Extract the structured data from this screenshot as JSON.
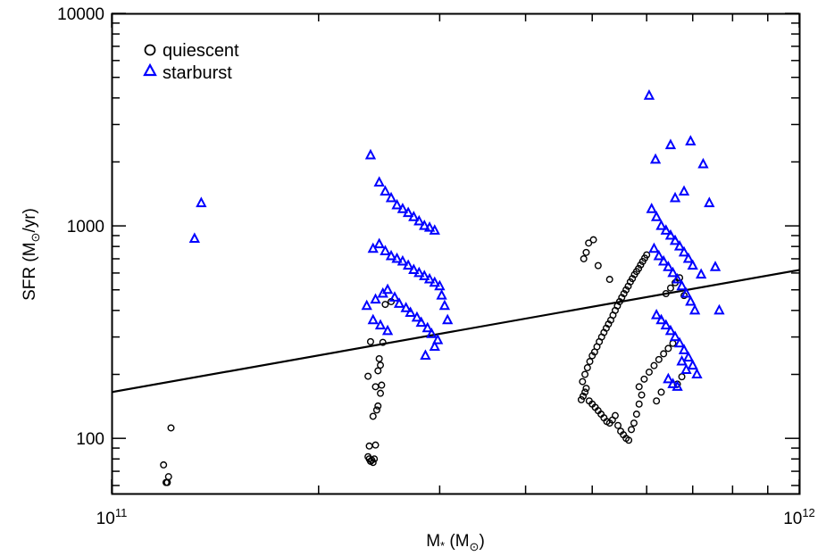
{
  "chart_data": {
    "type": "scatter",
    "xscale": "log",
    "yscale": "log",
    "xlim": [
      100000000000.0,
      1000000000000.0
    ],
    "ylim": [
      55,
      10000
    ],
    "x_tick_labels": [
      {
        "value": 100000000000.0,
        "base": "10",
        "exp": "11"
      },
      {
        "value": 1000000000000.0,
        "base": "10",
        "exp": "12"
      }
    ],
    "y_tick_labels": [
      {
        "value": 100,
        "text": "100"
      },
      {
        "value": 1000,
        "text": "1000"
      },
      {
        "value": 10000,
        "text": "10000"
      }
    ],
    "xlabel": {
      "main": "M",
      "star": "*",
      "paren_open": " (M",
      "sun": "⊙",
      "paren_close": ")"
    },
    "ylabel": {
      "main": "SFR (M",
      "sun": "⊙",
      "rest": "/yr)"
    },
    "grid": false,
    "legend_position": "top-left",
    "trend_line": {
      "x": [
        100000000000.0,
        1000000000000.0
      ],
      "y": [
        165,
        620
      ]
    },
    "series": [
      {
        "name": "quiescent",
        "marker": "circle",
        "color": "#000000",
        "points": [
          [
            119000000000.0,
            75
          ],
          [
            120000000000.0,
            62
          ],
          [
            120500000000.0,
            62
          ],
          [
            121000000000.0,
            66
          ],
          [
            122000000000.0,
            112
          ],
          [
            236000000000.0,
            82
          ],
          [
            237000000000.0,
            80
          ],
          [
            238000000000.0,
            78
          ],
          [
            239000000000.0,
            79
          ],
          [
            240000000000.0,
            77
          ],
          [
            241000000000.0,
            80
          ],
          [
            242000000000.0,
            93
          ],
          [
            237000000000.0,
            92
          ],
          [
            236000000000.0,
            196
          ],
          [
            240000000000.0,
            127
          ],
          [
            243000000000.0,
            136
          ],
          [
            244000000000.0,
            142
          ],
          [
            242000000000.0,
            175
          ],
          [
            246000000000.0,
            163
          ],
          [
            247000000000.0,
            178
          ],
          [
            244000000000.0,
            208
          ],
          [
            246000000000.0,
            221
          ],
          [
            245000000000.0,
            237
          ],
          [
            238000000000.0,
            285
          ],
          [
            248000000000.0,
            283
          ],
          [
            250000000000.0,
            427
          ],
          [
            255000000000.0,
            440
          ],
          [
            482000000000.0,
            152
          ],
          [
            485000000000.0,
            158
          ],
          [
            488000000000.0,
            165
          ],
          [
            490000000000.0,
            172
          ],
          [
            495000000000.0,
            150
          ],
          [
            500000000000.0,
            145
          ],
          [
            505000000000.0,
            140
          ],
          [
            510000000000.0,
            135
          ],
          [
            515000000000.0,
            130
          ],
          [
            520000000000.0,
            125
          ],
          [
            525000000000.0,
            120
          ],
          [
            530000000000.0,
            118
          ],
          [
            535000000000.0,
            122
          ],
          [
            540000000000.0,
            128
          ],
          [
            545000000000.0,
            115
          ],
          [
            550000000000.0,
            108
          ],
          [
            555000000000.0,
            104
          ],
          [
            560000000000.0,
            100
          ],
          [
            565000000000.0,
            98
          ],
          [
            570000000000.0,
            110
          ],
          [
            575000000000.0,
            118
          ],
          [
            580000000000.0,
            130
          ],
          [
            585000000000.0,
            145
          ],
          [
            590000000000.0,
            160
          ],
          [
            484000000000.0,
            185
          ],
          [
            488000000000.0,
            200
          ],
          [
            492000000000.0,
            215
          ],
          [
            496000000000.0,
            230
          ],
          [
            500000000000.0,
            245
          ],
          [
            504000000000.0,
            255
          ],
          [
            508000000000.0,
            270
          ],
          [
            512000000000.0,
            285
          ],
          [
            516000000000.0,
            300
          ],
          [
            520000000000.0,
            315
          ],
          [
            524000000000.0,
            330
          ],
          [
            528000000000.0,
            345
          ],
          [
            532000000000.0,
            360
          ],
          [
            536000000000.0,
            380
          ],
          [
            540000000000.0,
            400
          ],
          [
            544000000000.0,
            420
          ],
          [
            548000000000.0,
            440
          ],
          [
            552000000000.0,
            460
          ],
          [
            556000000000.0,
            480
          ],
          [
            560000000000.0,
            500
          ],
          [
            564000000000.0,
            520
          ],
          [
            568000000000.0,
            545
          ],
          [
            572000000000.0,
            565
          ],
          [
            576000000000.0,
            590
          ],
          [
            580000000000.0,
            610
          ],
          [
            584000000000.0,
            630
          ],
          [
            588000000000.0,
            655
          ],
          [
            592000000000.0,
            680
          ],
          [
            596000000000.0,
            705
          ],
          [
            600000000000.0,
            730
          ],
          [
            486000000000.0,
            700
          ],
          [
            490000000000.0,
            750
          ],
          [
            494000000000.0,
            830
          ],
          [
            502000000000.0,
            860
          ],
          [
            510000000000.0,
            650
          ],
          [
            530000000000.0,
            560
          ],
          [
            585000000000.0,
            175
          ],
          [
            595000000000.0,
            190
          ],
          [
            605000000000.0,
            205
          ],
          [
            615000000000.0,
            220
          ],
          [
            625000000000.0,
            235
          ],
          [
            635000000000.0,
            250
          ],
          [
            645000000000.0,
            265
          ],
          [
            655000000000.0,
            280
          ],
          [
            665000000000.0,
            180
          ],
          [
            675000000000.0,
            195
          ],
          [
            620000000000.0,
            150
          ],
          [
            630000000000.0,
            165
          ],
          [
            640000000000.0,
            480
          ],
          [
            650000000000.0,
            510
          ],
          [
            660000000000.0,
            540
          ],
          [
            670000000000.0,
            570
          ],
          [
            680000000000.0,
            470
          ]
        ]
      },
      {
        "name": "starburst",
        "marker": "triangle",
        "color": "#0000ff",
        "points": [
          [
            132000000000.0,
            870
          ],
          [
            135000000000.0,
            1280
          ],
          [
            238000000000.0,
            2150
          ],
          [
            245000000000.0,
            1600
          ],
          [
            250000000000.0,
            1450
          ],
          [
            255000000000.0,
            1350
          ],
          [
            260000000000.0,
            1250
          ],
          [
            265000000000.0,
            1200
          ],
          [
            270000000000.0,
            1150
          ],
          [
            275000000000.0,
            1100
          ],
          [
            280000000000.0,
            1050
          ],
          [
            285000000000.0,
            1000
          ],
          [
            290000000000.0,
            980
          ],
          [
            295000000000.0,
            950
          ],
          [
            240000000000.0,
            780
          ],
          [
            245000000000.0,
            820
          ],
          [
            250000000000.0,
            760
          ],
          [
            255000000000.0,
            720
          ],
          [
            260000000000.0,
            700
          ],
          [
            265000000000.0,
            680
          ],
          [
            270000000000.0,
            650
          ],
          [
            275000000000.0,
            620
          ],
          [
            280000000000.0,
            600
          ],
          [
            285000000000.0,
            580
          ],
          [
            290000000000.0,
            560
          ],
          [
            295000000000.0,
            540
          ],
          [
            300000000000.0,
            520
          ],
          [
            235000000000.0,
            420
          ],
          [
            242000000000.0,
            450
          ],
          [
            248000000000.0,
            480
          ],
          [
            252000000000.0,
            500
          ],
          [
            258000000000.0,
            460
          ],
          [
            262000000000.0,
            430
          ],
          [
            268000000000.0,
            410
          ],
          [
            272000000000.0,
            390
          ],
          [
            278000000000.0,
            370
          ],
          [
            282000000000.0,
            350
          ],
          [
            288000000000.0,
            330
          ],
          [
            292000000000.0,
            310
          ],
          [
            298000000000.0,
            290
          ],
          [
            302000000000.0,
            470
          ],
          [
            305000000000.0,
            420
          ],
          [
            308000000000.0,
            360
          ],
          [
            240000000000.0,
            360
          ],
          [
            246000000000.0,
            340
          ],
          [
            252000000000.0,
            320
          ],
          [
            286000000000.0,
            245
          ],
          [
            295000000000.0,
            270
          ],
          [
            605000000000.0,
            4100
          ],
          [
            618000000000.0,
            2050
          ],
          [
            650000000000.0,
            2400
          ],
          [
            695000000000.0,
            2500
          ],
          [
            725000000000.0,
            1950
          ],
          [
            610000000000.0,
            1200
          ],
          [
            620000000000.0,
            1100
          ],
          [
            630000000000.0,
            1000
          ],
          [
            640000000000.0,
            950
          ],
          [
            650000000000.0,
            900
          ],
          [
            660000000000.0,
            850
          ],
          [
            670000000000.0,
            800
          ],
          [
            680000000000.0,
            750
          ],
          [
            690000000000.0,
            700
          ],
          [
            700000000000.0,
            650
          ],
          [
            615000000000.0,
            780
          ],
          [
            625000000000.0,
            720
          ],
          [
            635000000000.0,
            680
          ],
          [
            645000000000.0,
            640
          ],
          [
            655000000000.0,
            600
          ],
          [
            665000000000.0,
            560
          ],
          [
            675000000000.0,
            520
          ],
          [
            685000000000.0,
            480
          ],
          [
            695000000000.0,
            440
          ],
          [
            705000000000.0,
            400
          ],
          [
            620000000000.0,
            380
          ],
          [
            630000000000.0,
            360
          ],
          [
            640000000000.0,
            340
          ],
          [
            650000000000.0,
            320
          ],
          [
            660000000000.0,
            300
          ],
          [
            670000000000.0,
            280
          ],
          [
            680000000000.0,
            260
          ],
          [
            690000000000.0,
            240
          ],
          [
            700000000000.0,
            220
          ],
          [
            710000000000.0,
            200
          ],
          [
            645000000000.0,
            190
          ],
          [
            655000000000.0,
            180
          ],
          [
            665000000000.0,
            175
          ],
          [
            675000000000.0,
            230
          ],
          [
            685000000000.0,
            210
          ],
          [
            740000000000.0,
            1280
          ],
          [
            680000000000.0,
            1450
          ],
          [
            660000000000.0,
            1350
          ],
          [
            755000000000.0,
            640
          ],
          [
            765000000000.0,
            400
          ],
          [
            720000000000.0,
            590
          ]
        ]
      }
    ]
  }
}
